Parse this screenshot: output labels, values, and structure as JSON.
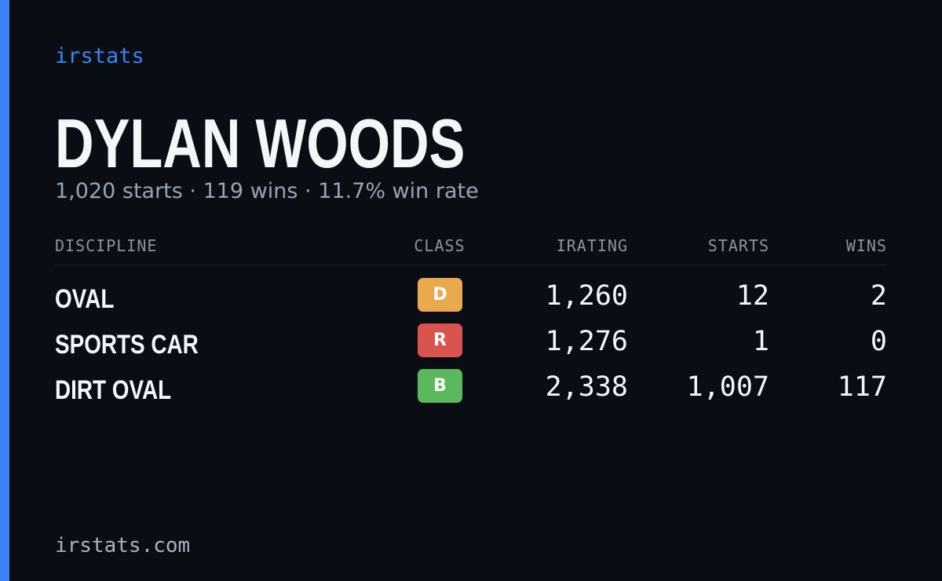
{
  "brand": "irstats",
  "profile": {
    "name": "DYLAN WOODS",
    "summary": "1,020 starts · 119 wins · 11.7% win rate"
  },
  "table": {
    "headers": [
      "DISCIPLINE",
      "CLASS",
      "IRATING",
      "STARTS",
      "WINS"
    ],
    "rows": [
      {
        "discipline": "OVAL",
        "class": "D",
        "class_color": "#eaa94c",
        "irating": "1,260",
        "starts": "12",
        "wins": "2"
      },
      {
        "discipline": "SPORTS CAR",
        "class": "R",
        "class_color": "#d9534f",
        "irating": "1,276",
        "starts": "1",
        "wins": "0"
      },
      {
        "discipline": "DIRT OVAL",
        "class": "B",
        "class_color": "#5cb85c",
        "irating": "2,338",
        "starts": "1,007",
        "wins": "117"
      }
    ]
  },
  "footer": "irstats.com"
}
